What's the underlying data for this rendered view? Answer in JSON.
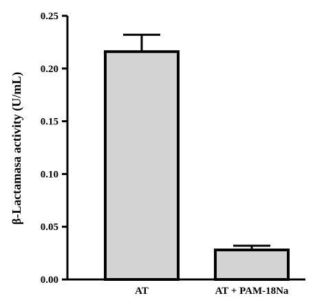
{
  "chart_data": {
    "type": "bar",
    "categories": [
      "AT",
      "AT + PAM-18Na"
    ],
    "values": [
      0.216,
      0.028
    ],
    "errors": [
      0.016,
      0.004
    ],
    "title": "",
    "xlabel": "",
    "ylabel": "β-Lactamasa activity (U/mL)",
    "ylim": [
      0,
      0.25
    ],
    "yticks": [
      "0.00",
      "0.05",
      "0.10",
      "0.15",
      "0.20",
      "0.25"
    ],
    "grid": false,
    "bar_color": "#d3d3d3",
    "edge_color": "#000000"
  }
}
